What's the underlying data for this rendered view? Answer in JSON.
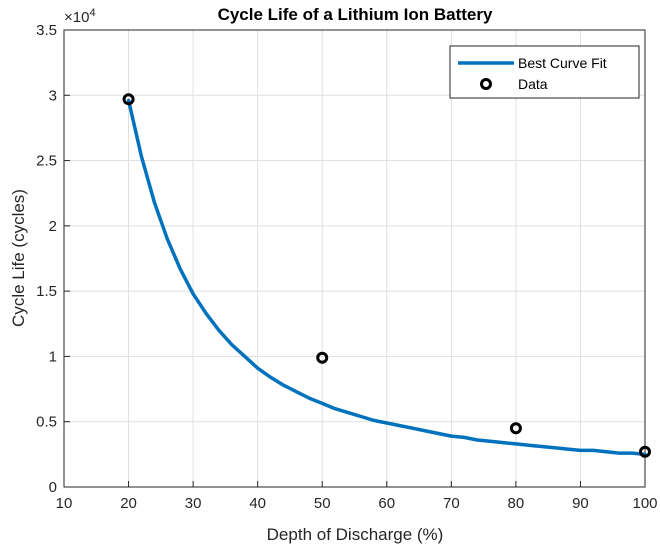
{
  "chart_data": {
    "type": "scatter",
    "title": "Cycle Life of a Lithium Ion Battery",
    "xlabel": "Depth of Discharge (%)",
    "ylabel": "Cycle Life (cycles)",
    "y_exponent_label": "×10",
    "y_exponent": "4",
    "xlim": [
      10,
      100
    ],
    "ylim": [
      0,
      3.5
    ],
    "x_ticks": [
      10,
      20,
      30,
      40,
      50,
      60,
      70,
      80,
      90,
      100
    ],
    "y_ticks": [
      0,
      0.5,
      1,
      1.5,
      2,
      2.5,
      3,
      3.5
    ],
    "grid": true,
    "legend_position": "top-right",
    "series": [
      {
        "name": "Best Curve Fit",
        "kind": "line",
        "color": "#0072BD",
        "x": [
          20,
          22,
          24,
          26,
          28,
          30,
          32,
          34,
          36,
          38,
          40,
          42,
          44,
          46,
          48,
          50,
          52,
          54,
          56,
          58,
          60,
          62,
          64,
          66,
          68,
          70,
          72,
          74,
          76,
          78,
          80,
          82,
          84,
          86,
          88,
          90,
          92,
          94,
          96,
          98,
          100
        ],
        "y": [
          2.96,
          2.53,
          2.18,
          1.9,
          1.67,
          1.48,
          1.33,
          1.2,
          1.09,
          1.0,
          0.91,
          0.84,
          0.78,
          0.73,
          0.68,
          0.64,
          0.6,
          0.57,
          0.54,
          0.51,
          0.49,
          0.47,
          0.45,
          0.43,
          0.41,
          0.39,
          0.38,
          0.36,
          0.35,
          0.34,
          0.33,
          0.32,
          0.31,
          0.3,
          0.29,
          0.28,
          0.28,
          0.27,
          0.26,
          0.26,
          0.25
        ]
      },
      {
        "name": "Data",
        "kind": "markers",
        "color": "#000000",
        "x": [
          20,
          50,
          80,
          100
        ],
        "y": [
          2.97,
          0.99,
          0.45,
          0.27
        ]
      }
    ]
  }
}
